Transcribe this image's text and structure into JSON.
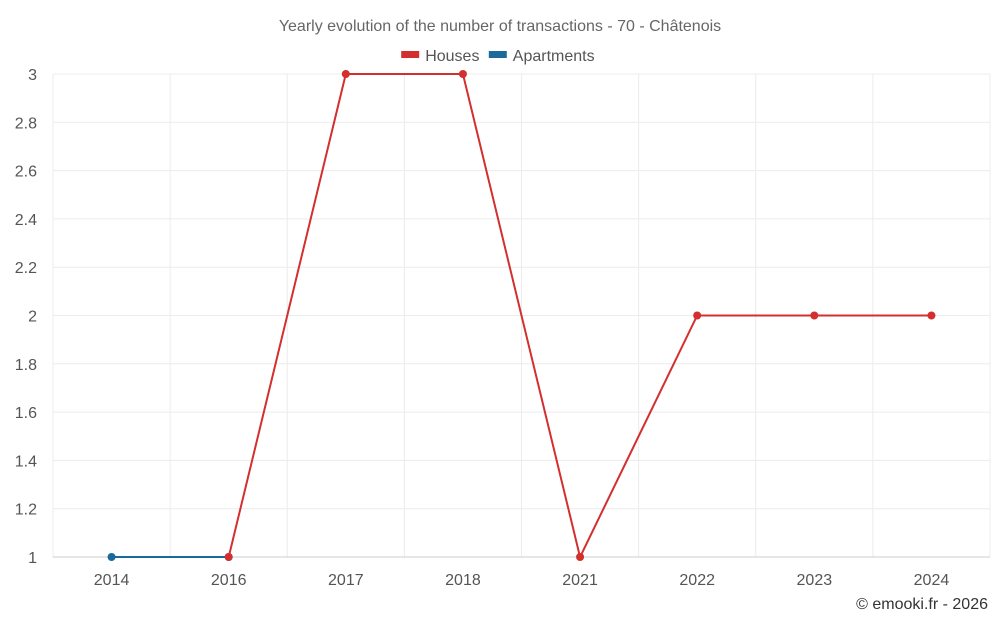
{
  "chart_data": {
    "type": "line",
    "title": "Yearly evolution of the number of transactions - 70 - Châtenois",
    "categories": [
      "2014",
      "2016",
      "2017",
      "2018",
      "2021",
      "2022",
      "2023",
      "2024"
    ],
    "y_ticks": [
      "1",
      "1.2",
      "1.4",
      "1.6",
      "1.8",
      "2",
      "2.2",
      "2.4",
      "2.6",
      "2.8",
      "3"
    ],
    "ylim": [
      1,
      3
    ],
    "grid": true,
    "legend_position": "top-center",
    "series": [
      {
        "name": "Houses",
        "color": "#d32f2f",
        "points": [
          {
            "x": "2016",
            "y": 1
          },
          {
            "x": "2017",
            "y": 3
          },
          {
            "x": "2018",
            "y": 3
          },
          {
            "x": "2021",
            "y": 1
          },
          {
            "x": "2022",
            "y": 2
          },
          {
            "x": "2023",
            "y": 2
          },
          {
            "x": "2024",
            "y": 2
          }
        ]
      },
      {
        "name": "Apartments",
        "color": "#1a6a9b",
        "points": [
          {
            "x": "2014",
            "y": 1
          },
          {
            "x": "2016",
            "y": 1
          }
        ]
      }
    ]
  },
  "credit": "© emooki.fr - 2026"
}
